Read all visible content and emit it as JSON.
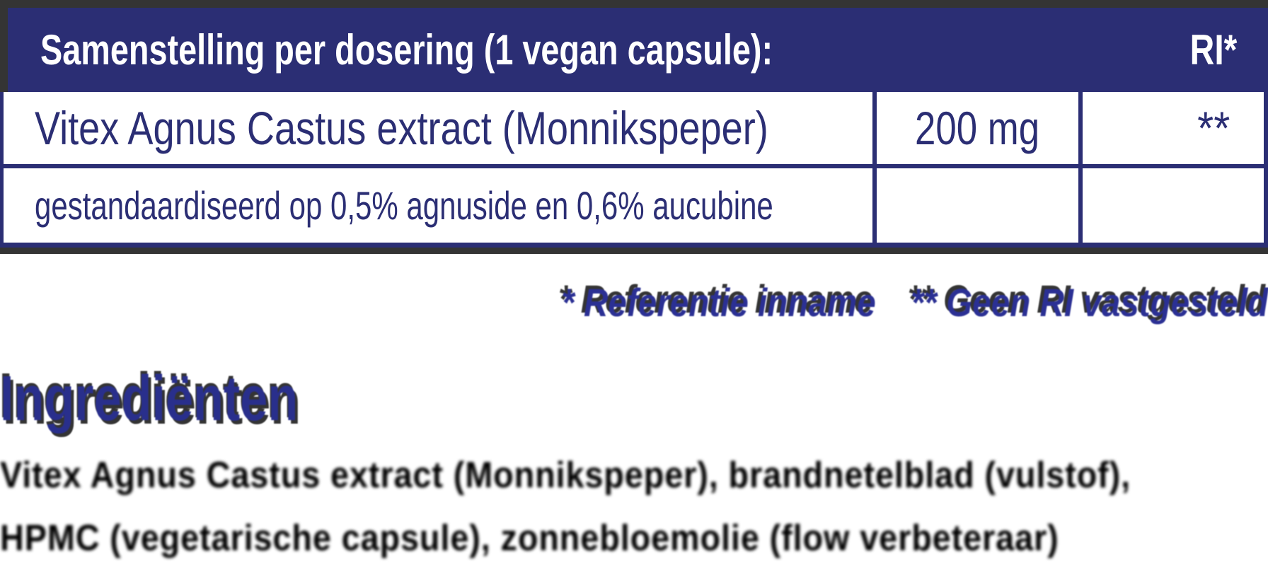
{
  "colors": {
    "table_navy": "#2b2e74",
    "footnote_blue": "#2b3094",
    "heading_blue": "#292f8c",
    "shadow_gray": "#343434",
    "body_black": "#000000"
  },
  "table": {
    "header": {
      "title": "Samenstelling per dosering (1 vegan capsule):",
      "ri": "RI*"
    },
    "rows": [
      {
        "name": "Vitex Agnus Castus extract (Monnikspeper)",
        "amount": "200 mg",
        "ri": "**"
      },
      {
        "name": "gestandaardiseerd op 0,5% agnuside en 0,6% aucubine",
        "amount": "",
        "ri": ""
      }
    ]
  },
  "footnotes": {
    "reference": "* Referentie inname",
    "no_ri": "** Geen RI vastgesteld"
  },
  "ingredients": {
    "heading": "Ingrediënten",
    "line1": "Vitex Agnus Castus extract (Monnikspeper), brandnetelblad (vulstof),",
    "line2": "HPMC (vegetarische capsule), zonnebloemolie (flow verbeteraar)"
  }
}
